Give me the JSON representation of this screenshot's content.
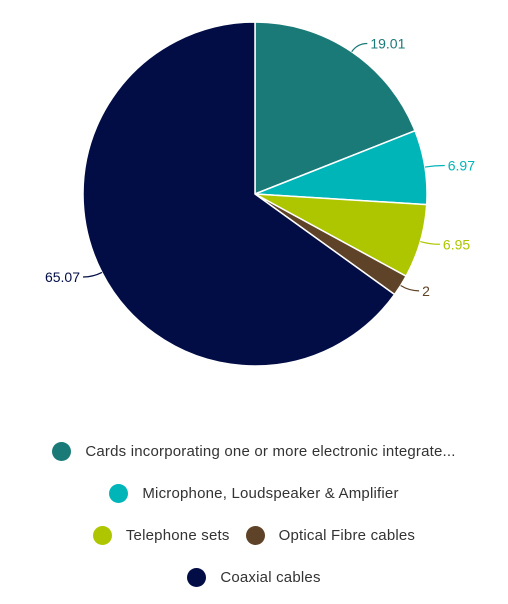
{
  "chart_data": {
    "type": "pie",
    "series": [
      {
        "name": "Cards incorporating one or more electronic integrate...",
        "value": 19.01,
        "color": "#1a7a78"
      },
      {
        "name": "Microphone, Loudspeaker & Amplifier",
        "value": 6.97,
        "color": "#00b5b8"
      },
      {
        "name": "Telephone sets",
        "value": 6.95,
        "color": "#aec600"
      },
      {
        "name": "Optical Fibre cables",
        "value": 2,
        "color": "#5e4328"
      },
      {
        "name": "Coaxial cables",
        "value": 65.07,
        "color": "#030d45"
      }
    ],
    "data_labels": [
      "19.01",
      "6.97",
      "6.95",
      "2",
      "65.07"
    ],
    "legend_placement": "bottom",
    "start_angle": "12 o'clock, clockwise"
  }
}
